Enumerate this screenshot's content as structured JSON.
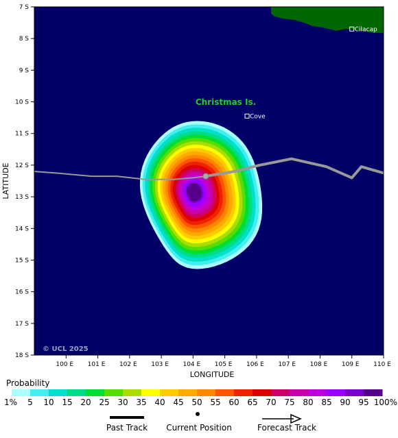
{
  "map": {
    "lon_range": [
      99,
      110
    ],
    "lat_range": [
      7,
      18
    ],
    "x_ticks": [
      {
        "value": 100,
        "label": "100 E"
      },
      {
        "value": 101,
        "label": "101 E"
      },
      {
        "value": 102,
        "label": "102 E"
      },
      {
        "value": 103,
        "label": "103 E"
      },
      {
        "value": 104,
        "label": "104 E"
      },
      {
        "value": 105,
        "label": "105 E"
      },
      {
        "value": 106,
        "label": "106 E"
      },
      {
        "value": 107,
        "label": "107 E"
      },
      {
        "value": 108,
        "label": "108 E"
      },
      {
        "value": 109,
        "label": "109 E"
      },
      {
        "value": 110,
        "label": "110 E"
      }
    ],
    "y_ticks": [
      {
        "value": 7,
        "label": "7 S"
      },
      {
        "value": 8,
        "label": "8 S"
      },
      {
        "value": 9,
        "label": "9 S"
      },
      {
        "value": 10,
        "label": "10 S"
      },
      {
        "value": 11,
        "label": "11 S"
      },
      {
        "value": 12,
        "label": "12 S"
      },
      {
        "value": 13,
        "label": "13 S"
      },
      {
        "value": 14,
        "label": "14 S"
      },
      {
        "value": 15,
        "label": "15 S"
      },
      {
        "value": 16,
        "label": "16 S"
      },
      {
        "value": 17,
        "label": "17 S"
      },
      {
        "value": 18,
        "label": "18 S"
      }
    ],
    "x_axis_title": "LONGITUDE",
    "y_axis_title": "LATITUDE",
    "ocean_color": "#000066",
    "land_color": "#006600",
    "track_color": "#999999",
    "island_label": "Christmas Is.",
    "places": [
      {
        "name": "Cove",
        "lon": 105.7,
        "lat": 10.45
      },
      {
        "name": "Cilacap",
        "lon": 109.0,
        "lat": 7.7
      }
    ],
    "copyright": "© UCL 2025",
    "past_track": [
      [
        99.0,
        12.2
      ],
      [
        99.7,
        12.25
      ],
      [
        100.8,
        12.35
      ],
      [
        101.6,
        12.35
      ],
      [
        102.5,
        12.45
      ],
      [
        103.4,
        12.45
      ],
      [
        104.0,
        12.4
      ],
      [
        104.4,
        12.35
      ]
    ],
    "forecast_track": [
      [
        104.4,
        12.35
      ],
      [
        105.3,
        12.2
      ],
      [
        106.1,
        12.0
      ],
      [
        107.1,
        11.8
      ],
      [
        108.2,
        12.05
      ],
      [
        109.0,
        12.4
      ],
      [
        109.3,
        12.05
      ],
      [
        110.0,
        12.25
      ]
    ],
    "current_position": {
      "lon": 104.4,
      "lat": 12.35
    },
    "probability_center": {
      "lon": 104.0,
      "lat": 12.85
    }
  },
  "legend": {
    "title": "Probability",
    "labels": [
      "1%",
      "5",
      "10",
      "15",
      "20",
      "25",
      "30",
      "35",
      "40",
      "45",
      "50",
      "55",
      "60",
      "65",
      "70",
      "75",
      "80",
      "85",
      "90",
      "95",
      "100%"
    ],
    "colors": [
      "#aaffff",
      "#44eeee",
      "#00e0cc",
      "#00dd88",
      "#00dd33",
      "#55dd00",
      "#aadd00",
      "#ffff00",
      "#ffcc00",
      "#ffaa00",
      "#ff8800",
      "#ff5500",
      "#ee2200",
      "#dd0000",
      "#cc0066",
      "#cc00aa",
      "#bb00dd",
      "#9900ff",
      "#7700cc",
      "#550088"
    ],
    "past_track_label": "Past Track",
    "current_position_label": "Current Position",
    "forecast_track_label": "Forecast Track"
  }
}
